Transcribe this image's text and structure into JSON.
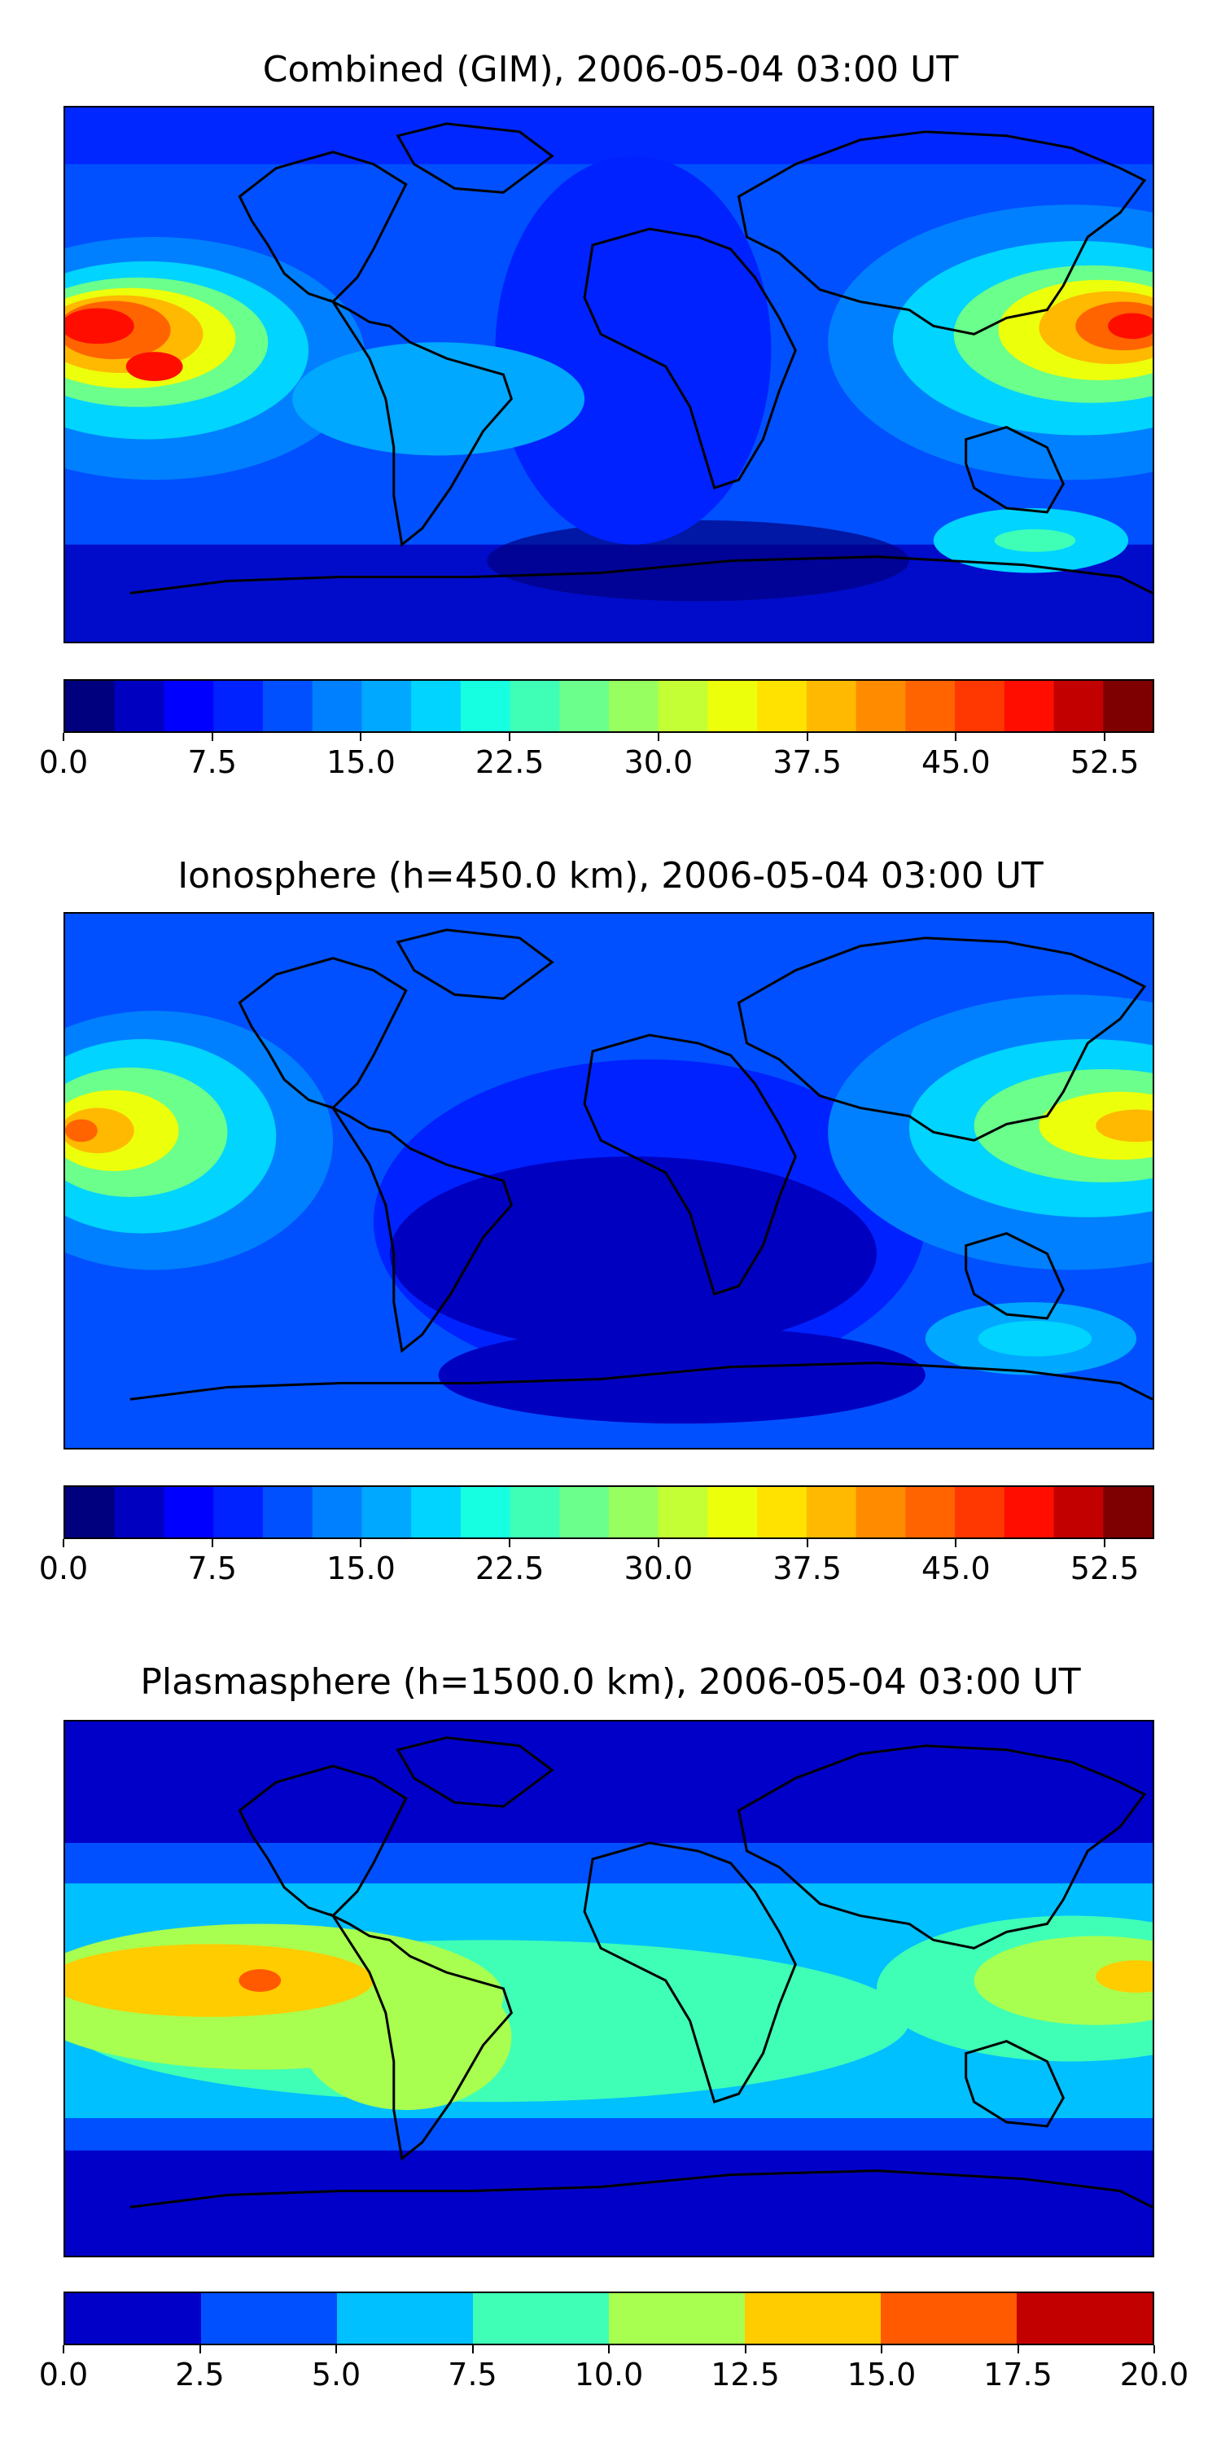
{
  "panels": [
    {
      "title": "Combined (GIM), 2006-05-04 03:00 UT",
      "colorbar": {
        "min": 0,
        "max": 55,
        "levels": 22,
        "colors": [
          "#00007f",
          "#0000c1",
          "#0000ff",
          "#0022ff",
          "#0050ff",
          "#0080ff",
          "#00a8ff",
          "#00d4ff",
          "#16ffe1",
          "#3fffb7",
          "#6bff8b",
          "#97ff60",
          "#c3ff34",
          "#ecff0b",
          "#ffe200",
          "#ffb900",
          "#ff8c00",
          "#ff6400",
          "#ff3700",
          "#ff0e00",
          "#c30000",
          "#7f0000"
        ],
        "ticks": [
          "0.0",
          "7.5",
          "15.0",
          "22.5",
          "30.0",
          "37.5",
          "45.0",
          "52.5"
        ],
        "tick_values": [
          0,
          7.5,
          15,
          22.5,
          30,
          37.5,
          45,
          52.5
        ]
      }
    },
    {
      "title": "Ionosphere  (h=450.0 km), 2006-05-04 03:00 UT",
      "colorbar": {
        "min": 0,
        "max": 55,
        "levels": 22,
        "colors": [
          "#00007f",
          "#0000c1",
          "#0000ff",
          "#0022ff",
          "#0050ff",
          "#0080ff",
          "#00a8ff",
          "#00d4ff",
          "#16ffe1",
          "#3fffb7",
          "#6bff8b",
          "#97ff60",
          "#c3ff34",
          "#ecff0b",
          "#ffe200",
          "#ffb900",
          "#ff8c00",
          "#ff6400",
          "#ff3700",
          "#ff0e00",
          "#c30000",
          "#7f0000"
        ],
        "ticks": [
          "0.0",
          "7.5",
          "15.0",
          "22.5",
          "30.0",
          "37.5",
          "45.0",
          "52.5"
        ],
        "tick_values": [
          0,
          7.5,
          15,
          22.5,
          30,
          37.5,
          45,
          52.5
        ]
      }
    },
    {
      "title": "Plasmasphere (h=1500.0 km), 2006-05-04 03:00 UT",
      "colorbar": {
        "min": 0,
        "max": 20,
        "levels": 8,
        "colors": [
          "#0000c8",
          "#0050ff",
          "#00c0ff",
          "#3fffb7",
          "#a8ff4f",
          "#ffcc00",
          "#ff5a00",
          "#c30000"
        ],
        "ticks": [
          "0.0",
          "2.5",
          "5.0",
          "7.5",
          "10.0",
          "12.5",
          "15.0",
          "17.5",
          "20.0"
        ],
        "tick_values": [
          0,
          2.5,
          5,
          7.5,
          10,
          12.5,
          15,
          17.5,
          20
        ]
      }
    }
  ]
}
